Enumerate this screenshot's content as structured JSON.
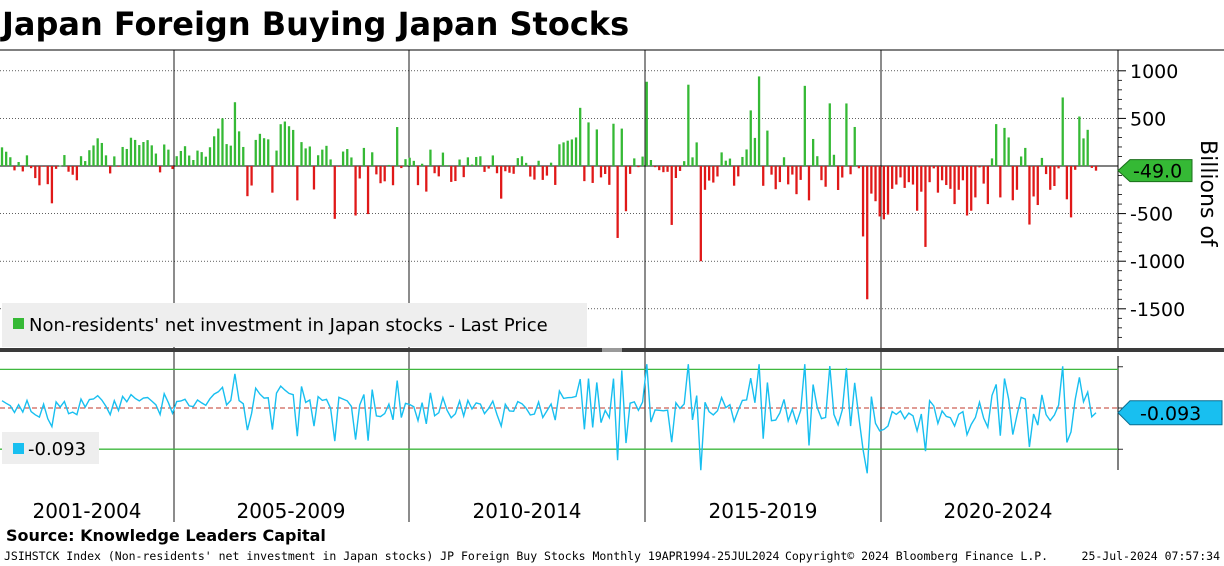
{
  "title": "Japan Foreign Buying Japan Stocks",
  "source_label": "Source: Knowledge Leaders Capital",
  "footer": {
    "left": "JSIHSTCK Index (Non-residents' net investment in Japan stocks) JP Foreign Buy Stocks  Monthly 19APR1994-25JUL2024",
    "middle": "Copyright© 2024 Bloomberg Finance L.P.",
    "right": "25-Jul-2024 07:57:34"
  },
  "colors": {
    "positive": "#35b935",
    "negative": "#e01818",
    "line": "#18bff0",
    "band": "#3fb83f",
    "zero_line": "#c0392b",
    "grid": "#000000"
  },
  "periods": [
    "2001-2004",
    "2005-2009",
    "2010-2014",
    "2015-2019",
    "2020-2024"
  ],
  "chart_data": [
    {
      "type": "bar",
      "name": "Non-residents' net investment in Japan stocks",
      "legend": "Non-residents' net investment in Japan stocks - Last Price",
      "ylabel": "Billions of",
      "ylim": [
        -1900,
        1150
      ],
      "yticks": [
        1000,
        500,
        -500,
        -1000,
        -1500
      ],
      "ytick_labels": [
        "1000",
        "500",
        "-500",
        "-1000",
        "-1500"
      ],
      "last_value": -49.0,
      "last_value_label": "-49.0",
      "frequency": "monthly",
      "x_range": [
        "2000-11",
        "2024-07"
      ],
      "values": [
        196,
        150,
        92,
        -46,
        42,
        -57,
        112,
        -23,
        -127,
        -203,
        -5,
        -191,
        -392,
        -30,
        5,
        115,
        -60,
        -92,
        -150,
        103,
        52,
        166,
        216,
        291,
        242,
        112,
        -78,
        101,
        -8,
        200,
        179,
        297,
        274,
        220,
        252,
        272,
        217,
        131,
        -67,
        226,
        172,
        -32,
        103,
        158,
        208,
        110,
        63,
        162,
        146,
        98,
        197,
        312,
        393,
        500,
        230,
        214,
        670,
        364,
        200,
        -317,
        -205,
        274,
        338,
        292,
        280,
        -280,
        162,
        439,
        467,
        418,
        379,
        -361,
        251,
        185,
        205,
        -247,
        113,
        172,
        212,
        69,
        -555,
        -8,
        152,
        178,
        90,
        -520,
        -131,
        190,
        -505,
        144,
        -88,
        -181,
        -161,
        11,
        -202,
        409,
        -22,
        72,
        87,
        54,
        -201,
        24,
        -269,
        172,
        -76,
        -109,
        141,
        9,
        -167,
        -158,
        68,
        -117,
        91,
        15,
        95,
        102,
        -62,
        -27,
        111,
        -76,
        -343,
        -55,
        -71,
        -82,
        83,
        102,
        33,
        -111,
        -143,
        55,
        -146,
        -101,
        35,
        -199,
        228,
        248,
        266,
        279,
        300,
        611,
        -159,
        458,
        -178,
        384,
        -120,
        -84,
        -198,
        444,
        -756,
        393,
        -475,
        -83,
        80,
        -12,
        99,
        885,
        63,
        -12,
        -44,
        -65,
        -61,
        -619,
        -126,
        -52,
        51,
        854,
        91,
        248,
        -1000,
        -250,
        -153,
        -174,
        -110,
        143,
        56,
        78,
        -207,
        -109,
        95,
        174,
        584,
        295,
        941,
        -208,
        372,
        -91,
        -244,
        -169,
        92,
        -193,
        -90,
        -296,
        -146,
        842,
        -361,
        284,
        103,
        -149,
        -218,
        658,
        118,
        -252,
        -121,
        657,
        -87,
        410,
        -24,
        -740,
        -1400,
        -290,
        -370,
        -530,
        -560,
        -510,
        -240,
        -195,
        -120,
        -230,
        -170,
        -195,
        -470,
        -270,
        -850,
        -170,
        -25,
        -280,
        -150,
        -200,
        -240,
        -400,
        -250,
        -150,
        -520,
        -470,
        -330,
        -15,
        -185,
        -400,
        80,
        440,
        -330,
        400,
        300,
        -360,
        -250,
        100,
        190,
        -615,
        -320,
        -410,
        85,
        -85,
        -250,
        -210,
        -25,
        720,
        -350,
        -540,
        -40,
        520,
        290,
        380,
        -20,
        -49
      ]
    },
    {
      "type": "line",
      "name": "Sub-panel series",
      "legend": "-0.093",
      "last_value": -0.093,
      "last_value_label": "-0.093",
      "ylim": [
        -1.55,
        0.95
      ],
      "bands": [
        0.75,
        -0.8
      ],
      "reference_line": 0
    }
  ]
}
